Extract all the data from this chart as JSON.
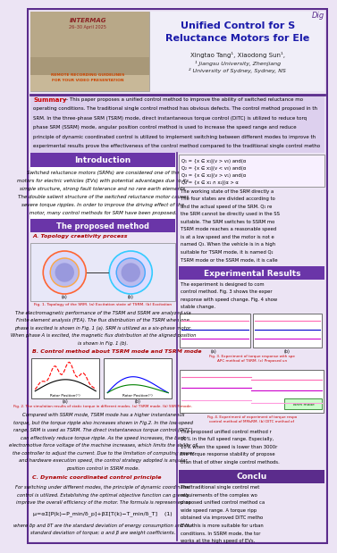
{
  "title_line1": "Unified Control for S",
  "title_line2": "Reluctance Motors for Ele",
  "authors": "Xingtao Tang¹, Xiaodong Sun¹,",
  "affil1": "¹ Jiangsu University, Zhenjiang",
  "affil2": "² University of Sydney, Sydney, NS",
  "corner_text": "Dig",
  "summary_label": "Summary",
  "summary_text1": " — This paper proposes a unified control method to improve the ability of switched reluctance mo",
  "summary_lines": [
    "operating conditions. The traditional single control method has obvious defects. The control method proposed in th",
    "SRM. In the three-phase SRM (TSRM) mode, direct instantaneous torque control (DITC) is utilized to reduce torq",
    "phase SRM (SSRM) mode, angular position control method is used to increase the speed range and reduce",
    "principle of dynamic coordinated control is utilized to implement switching between different modes to improve th",
    "experimental results prove the effectiveness of the control method compared to the traditional single control metho"
  ],
  "section1_title": "Introduction",
  "intro_lines": [
    "Switched reluctance motors (SRMs) are considered one of the",
    "motors for electric vehicles (EVs) with potential advantages due to its",
    "simple structure, strong fault tolerance and no rare earth elements.",
    "The double salient structure of the switched reluctance motor causes",
    "severe torque ripples. In order to improve the driving effect of the",
    "motor, many control methods for SRM have been proposed."
  ],
  "section2_title": "The proposed method",
  "subsec_a": "A. Topology creativity process",
  "fig1_caption": "Fig. 1. Topology of the SRM. (a) Excitation state of TSRM. (b) Excitation",
  "para_fem_lines": [
    "The electromagnetic performance of the TSRM and SSRM are analyzed via",
    "Finite element analysis (FEA). The flux distribution of the TSRM when one",
    "phase is excited is shown in Fig. 1 (a). SRM is utilized as a six-phase motor.",
    "When phase A is excited, the magnetic flux distribution at the aligned position",
    "is shown in Fig. 1 (b)."
  ],
  "subsec_b": "B. Control method about TSRM mode and TSRM mode",
  "fig2_caption": "Fig. 2. The simulation results of static torque in different modes. (a) TSRM mode. (b) SSRM mode.",
  "para_b_lines": [
    "Compared with SSRM mode, TSRM mode has a higher instantaneous",
    "torque, but the torque ripple also increases shown in Fig.2. In the low-speed",
    "range, SRM is used as TSRM. The direct instantaneous torque control (DITC)",
    "can effectively reduce torque ripple. As the speed increases, the back",
    "electromotive force voltage of the machine increases, which limits the ability of",
    "the controller to adjust the current. Due to the limitation of computing power",
    "and hardware execution speed, the control strategy adopted is angular",
    "position control in SSRM mode."
  ],
  "subsec_c": "C. Dynamic coordinated control principle",
  "para_c_lines": [
    "For switching under different modes, the principle of dynamic coordinated",
    "control is utilized. Establishing the optimal objective function can greatly",
    "improve the overall efficiency of the motor. The formula is represented as"
  ],
  "formula": "μ=αΣ[P(k)−P_min/δ_p]+βΣ[T(k)−T_min/δ_T]    (1)",
  "para_c2_lines": [
    "where δp and δT are the standard deviation of energy consumption and the",
    "standard deviation of torque; α and β are weight coefficients."
  ],
  "eq_lines": [
    "Q₁ = {x ∈ x₁|(v > v₀) and(α",
    "Q₂ = {x ∈ x₁|(v < v₀) and(α",
    "Q₃ = {x ∈ x₂|(v > v₁) and(α",
    "Q₄ = {x ∈ x₁ ∩ x₂|(α > α"
  ],
  "right_para1_lines": [
    "The working state of the SRM directly a",
    "The four states are divided according to",
    "and the actual speed of the SRM. Q₁ re",
    "the SRM cannot be directly used in the SS",
    "suitable. The SRM switches to SSRM mo",
    "TSRM mode reaches a reasonable speed",
    "is at a low speed and the motor is not e",
    "named Q₃. When the vehicle is in a high",
    "suitable for TSRM mode, it is named Q₂",
    "TSRM mode or the SSRM mode, it is calle"
  ],
  "exp_title": "Experimental Results",
  "exp_lines": [
    "The experiment is designed to com",
    "control method. Fig. 3 shows the exper",
    "response with speed change. Fig. 4 show",
    "stable change."
  ],
  "fig3_caption": "Fig. 3. Experiment of torque response with spe\nAPC method of TSRM. (c) Proposed un",
  "fig4_caption": "Fig. 4. Experiment of experiment of torque respo\ncontrol method of MMsRM. (b) DITC method of",
  "exp_text2_lines": [
    "The proposed unified control method r",
    "30% in the full speed range. Especially,",
    "10% when the speed is lower than 3000r",
    "the torque response stability of propose",
    "than that of other single control methods."
  ],
  "conclu_title": "Conclu",
  "conclu_lines": [
    "The traditional single control met",
    "requirements of the complex wo",
    "proposed unified control method ca",
    "wide speed range. A torque ripp",
    "obtained via improved DITC metho",
    "EVs, this is more suitable for urban",
    "conditions. In SSRM mode, the tor",
    "works at the high speed of EVs."
  ],
  "bg_color": "#ece4f4",
  "purple_dark": "#5b2c8c",
  "purple_header": "#6a35a8",
  "title_color": "#1a1aaa",
  "red_color": "#cc0000",
  "white": "#ffffff",
  "img_bg": "#c8b89a",
  "img_text_color": "#cc4400"
}
